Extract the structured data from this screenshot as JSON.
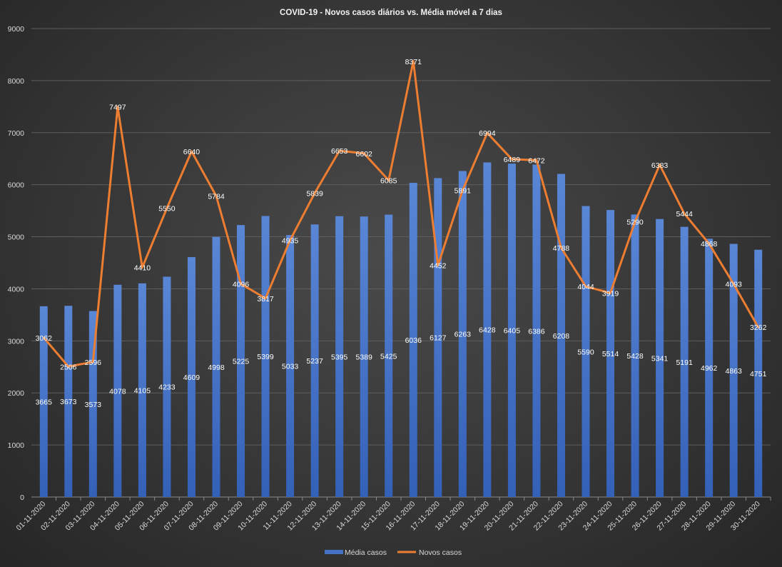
{
  "chart_data": {
    "type": "bar+line",
    "title": "COVID-19  - Novos casos diários  vs. Média  móvel  a 7 dias",
    "categories": [
      "01-11-2020",
      "02-11-2020",
      "03-11-2020",
      "04-11-2020",
      "05-11-2020",
      "06-11-2020",
      "07-11-2020",
      "08-11-2020",
      "09-11-2020",
      "10-11-2020",
      "11-11-2020",
      "12-11-2020",
      "13-11-2020",
      "14-11-2020",
      "15-11-2020",
      "16-11-2020",
      "17-11-2020",
      "18-11-2020",
      "19-11-2020",
      "20-11-2020",
      "21-11-2020",
      "22-11-2020",
      "23-11-2020",
      "24-11-2020",
      "25-11-2020",
      "26-11-2020",
      "27-11-2020",
      "28-11-2020",
      "29-11-2020",
      "30-11-2020"
    ],
    "series": [
      {
        "name": "Média casos",
        "kind": "bar",
        "color": "#4472C4",
        "values": [
          3665,
          3673,
          3573,
          4078,
          4105,
          4233,
          4609,
          4998,
          5225,
          5399,
          5033,
          5237,
          5395,
          5389,
          5425,
          6036,
          6127,
          6263,
          6428,
          6405,
          6386,
          6208,
          5590,
          5514,
          5428,
          5341,
          5191,
          4962,
          4863,
          4751
        ]
      },
      {
        "name": "Novos casos",
        "kind": "line",
        "color": "#ED7D31",
        "values": [
          3062,
          2506,
          2596,
          7497,
          4410,
          5550,
          6640,
          5784,
          4096,
          3817,
          4935,
          5839,
          6653,
          6602,
          6085,
          8371,
          4452,
          5891,
          6994,
          6489,
          6472,
          4788,
          4044,
          3919,
          5290,
          6383,
          5444,
          4868,
          4093,
          3262
        ]
      }
    ],
    "ylim": [
      0,
      9000
    ],
    "yticks": [
      0,
      1000,
      2000,
      3000,
      4000,
      5000,
      6000,
      7000,
      8000,
      9000
    ],
    "grid": true,
    "legend": "bottom-center",
    "xlabel": "",
    "ylabel": ""
  }
}
